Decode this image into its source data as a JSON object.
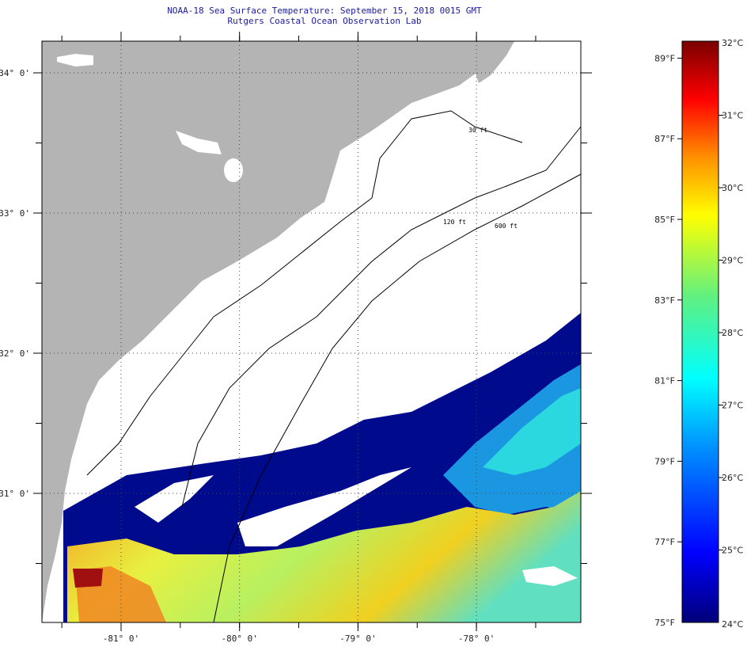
{
  "header": {
    "title": "NOAA-18 Sea Surface Temperature:  September 15, 2018 0015 GMT",
    "subtitle": "Rutgers Coastal Ocean Observation Lab"
  },
  "map": {
    "lat_labels": [
      {
        "value": 34,
        "text": "34° 0'"
      },
      {
        "value": 33,
        "text": "33° 0'"
      },
      {
        "value": 32,
        "text": "32° 0'"
      },
      {
        "value": 31,
        "text": "31° 0'"
      }
    ],
    "lon_labels": [
      {
        "value": -81,
        "text": "-81° 0'"
      },
      {
        "value": -80,
        "text": "-80° 0'"
      },
      {
        "value": -79,
        "text": "-79° 0'"
      },
      {
        "value": -78,
        "text": "-78° 0'"
      }
    ],
    "contours": [
      "30 ft",
      "120 ft",
      "600 ft"
    ],
    "colors": {
      "land": "#b4b4b4",
      "cloud": "#ffffff",
      "cold": "#000a8c"
    }
  },
  "colorbar": {
    "fahrenheit": [
      {
        "value": 89,
        "text": "89°F"
      },
      {
        "value": 87,
        "text": "87°F"
      },
      {
        "value": 85,
        "text": "85°F"
      },
      {
        "value": 83,
        "text": "83°F"
      },
      {
        "value": 81,
        "text": "81°F"
      },
      {
        "value": 79,
        "text": "79°F"
      },
      {
        "value": 77,
        "text": "77°F"
      },
      {
        "value": 75,
        "text": "75°F"
      }
    ],
    "celsius": [
      {
        "value": 32,
        "text": "32°C"
      },
      {
        "value": 31,
        "text": "31°C"
      },
      {
        "value": 30,
        "text": "30°C"
      },
      {
        "value": 29,
        "text": "29°C"
      },
      {
        "value": 28,
        "text": "28°C"
      },
      {
        "value": 27,
        "text": "27°C"
      },
      {
        "value": 26,
        "text": "26°C"
      },
      {
        "value": 25,
        "text": "25°C"
      },
      {
        "value": 24,
        "text": "24°C"
      }
    ]
  }
}
